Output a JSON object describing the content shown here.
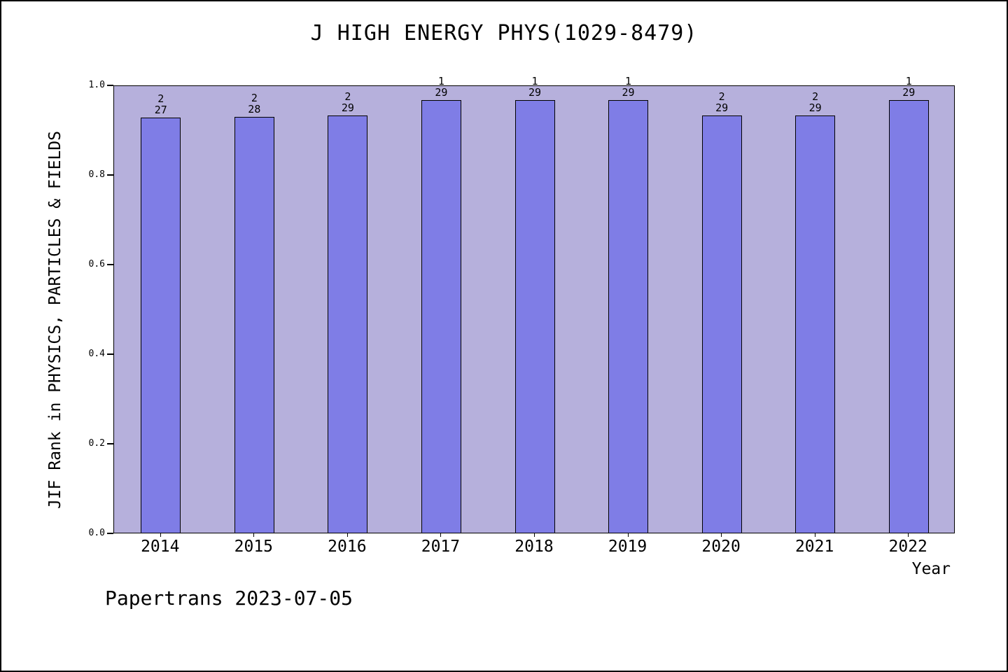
{
  "page": {
    "footer": "Papertrans 2023-07-05"
  },
  "chart_data": {
    "type": "bar",
    "title": "J HIGH ENERGY PHYS(1029-8479)",
    "xlabel": "Year",
    "ylabel": "JIF Rank in PHYSICS, PARTICLES & FIELDS",
    "ylim": [
      0.0,
      1.0
    ],
    "yticks": [
      "0.0",
      "0.2",
      "0.4",
      "0.6",
      "0.8",
      "1.0"
    ],
    "grid": false,
    "legend": "none",
    "categories": [
      "2014",
      "2015",
      "2016",
      "2017",
      "2018",
      "2019",
      "2020",
      "2021",
      "2022"
    ],
    "bars": [
      {
        "year": "2014",
        "rank": 2,
        "total": 27,
        "value": 0.9259
      },
      {
        "year": "2015",
        "rank": 2,
        "total": 28,
        "value": 0.9286
      },
      {
        "year": "2016",
        "rank": 2,
        "total": 29,
        "value": 0.931
      },
      {
        "year": "2017",
        "rank": 1,
        "total": 29,
        "value": 0.9655
      },
      {
        "year": "2018",
        "rank": 1,
        "total": 29,
        "value": 0.9655
      },
      {
        "year": "2019",
        "rank": 1,
        "total": 29,
        "value": 0.9655
      },
      {
        "year": "2020",
        "rank": 2,
        "total": 29,
        "value": 0.931
      },
      {
        "year": "2021",
        "rank": 2,
        "total": 29,
        "value": 0.931
      },
      {
        "year": "2022",
        "rank": 1,
        "total": 29,
        "value": 0.9655
      }
    ],
    "colors": {
      "bar_fill": "#7f7de6",
      "bar_border": "#000000",
      "plot_bg": "#b6b0dc",
      "page_bg": "#ffffff",
      "text": "#000000"
    }
  }
}
